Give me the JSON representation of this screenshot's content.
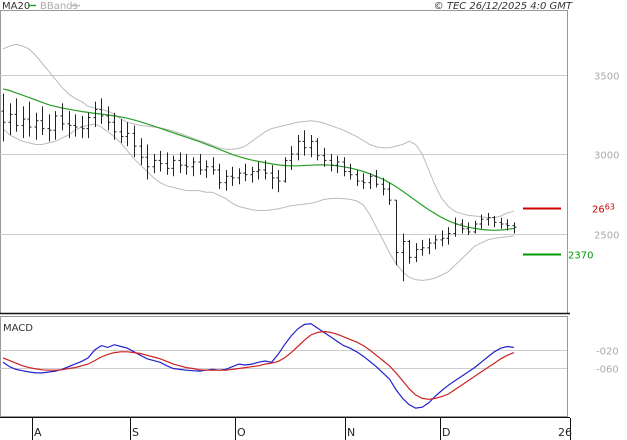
{
  "header": {
    "legend": [
      {
        "label": "MA20",
        "color": "#2aa02a"
      },
      {
        "label": "BBands",
        "color": "#bbbbbb"
      }
    ],
    "copyright": "© TEC 26/12/2025 4:0 GMT"
  },
  "colors": {
    "price": "#222222",
    "ma20": "#2aa02a",
    "bbands": "#bbbbbb",
    "grid": "#cccccc",
    "resistance": "#cc0000",
    "support": "#009900",
    "macd": "#2222cc",
    "signal": "#cc2222"
  },
  "chart_data": [
    {
      "type": "line",
      "name": "price-panel",
      "ylim": [
        2000,
        3900
      ],
      "yticks": [
        2500,
        3000,
        3500
      ],
      "ytick_labels": [
        "2500",
        "3000",
        "3500"
      ],
      "grid": true,
      "annotations": [
        {
          "label_main": "26",
          "label_sup": "63",
          "value": 2663,
          "color": "#cc0000"
        },
        {
          "label_main": "2370",
          "label_sup": "",
          "value": 2370,
          "color": "#009900"
        }
      ],
      "bars": [
        [
          3270,
          3380,
          3080,
          3200
        ],
        [
          3200,
          3320,
          3120,
          3250
        ],
        [
          3250,
          3350,
          3140,
          3180
        ],
        [
          3180,
          3300,
          3100,
          3220
        ],
        [
          3220,
          3330,
          3110,
          3170
        ],
        [
          3170,
          3260,
          3090,
          3210
        ],
        [
          3210,
          3300,
          3120,
          3160
        ],
        [
          3160,
          3250,
          3080,
          3150
        ],
        [
          3150,
          3270,
          3090,
          3240
        ],
        [
          3240,
          3320,
          3150,
          3190
        ],
        [
          3190,
          3270,
          3100,
          3180
        ],
        [
          3180,
          3250,
          3110,
          3170
        ],
        [
          3170,
          3240,
          3100,
          3160
        ],
        [
          3160,
          3260,
          3100,
          3230
        ],
        [
          3230,
          3330,
          3170,
          3280
        ],
        [
          3280,
          3350,
          3190,
          3240
        ],
        [
          3240,
          3300,
          3150,
          3200
        ],
        [
          3200,
          3260,
          3090,
          3140
        ],
        [
          3140,
          3220,
          3070,
          3110
        ],
        [
          3110,
          3200,
          3050,
          3130
        ],
        [
          3130,
          3180,
          2980,
          3050
        ],
        [
          3050,
          3100,
          2930,
          2980
        ],
        [
          2980,
          3060,
          2840,
          2920
        ],
        [
          2920,
          3000,
          2880,
          2960
        ],
        [
          2960,
          3020,
          2890,
          2940
        ],
        [
          2940,
          3010,
          2870,
          2910
        ],
        [
          2910,
          2990,
          2860,
          2960
        ],
        [
          2960,
          3010,
          2880,
          2930
        ],
        [
          2930,
          3000,
          2870,
          2920
        ],
        [
          2920,
          2980,
          2860,
          2950
        ],
        [
          2950,
          3000,
          2870,
          2900
        ],
        [
          2900,
          2960,
          2850,
          2920
        ],
        [
          2920,
          2980,
          2870,
          2900
        ],
        [
          2900,
          2940,
          2780,
          2820
        ],
        [
          2820,
          2900,
          2770,
          2860
        ],
        [
          2860,
          2920,
          2800,
          2850
        ],
        [
          2850,
          2910,
          2810,
          2880
        ],
        [
          2880,
          2940,
          2830,
          2870
        ],
        [
          2870,
          2920,
          2820,
          2890
        ],
        [
          2890,
          2950,
          2840,
          2900
        ],
        [
          2900,
          2960,
          2840,
          2880
        ],
        [
          2880,
          2930,
          2780,
          2850
        ],
        [
          2850,
          2900,
          2760,
          2830
        ],
        [
          2830,
          2980,
          2820,
          2960
        ],
        [
          2960,
          3050,
          2900,
          3000
        ],
        [
          3000,
          3120,
          2960,
          3080
        ],
        [
          3080,
          3150,
          2990,
          3040
        ],
        [
          3040,
          3120,
          2980,
          3080
        ],
        [
          3080,
          3100,
          2960,
          2990
        ],
        [
          2990,
          3040,
          2920,
          2960
        ],
        [
          2960,
          3000,
          2890,
          2930
        ],
        [
          2930,
          2990,
          2880,
          2950
        ],
        [
          2950,
          2980,
          2860,
          2890
        ],
        [
          2890,
          2940,
          2840,
          2870
        ],
        [
          2870,
          2900,
          2800,
          2830
        ],
        [
          2830,
          2880,
          2780,
          2820
        ],
        [
          2820,
          2880,
          2780,
          2860
        ],
        [
          2860,
          2900,
          2790,
          2810
        ],
        [
          2810,
          2850,
          2740,
          2780
        ],
        [
          2780,
          2820,
          2680,
          2710
        ],
        [
          2710,
          2550,
          2300,
          2380
        ],
        [
          2380,
          2500,
          2200,
          2450
        ],
        [
          2450,
          2460,
          2310,
          2350
        ],
        [
          2350,
          2440,
          2320,
          2400
        ],
        [
          2400,
          2460,
          2360,
          2410
        ],
        [
          2410,
          2470,
          2370,
          2440
        ],
        [
          2440,
          2490,
          2400,
          2460
        ],
        [
          2460,
          2520,
          2420,
          2470
        ],
        [
          2470,
          2540,
          2430,
          2500
        ],
        [
          2500,
          2600,
          2480,
          2560
        ],
        [
          2560,
          2590,
          2500,
          2530
        ],
        [
          2530,
          2570,
          2490,
          2510
        ],
        [
          2510,
          2580,
          2500,
          2560
        ],
        [
          2560,
          2620,
          2530,
          2590
        ],
        [
          2590,
          2630,
          2550,
          2600
        ],
        [
          2600,
          2610,
          2540,
          2570
        ],
        [
          2570,
          2600,
          2530,
          2560
        ],
        [
          2560,
          2590,
          2520,
          2550
        ],
        [
          2550,
          2570,
          2500,
          2540
        ]
      ],
      "ma20": [
        3410,
        3400,
        3385,
        3370,
        3355,
        3340,
        3325,
        3310,
        3300,
        3290,
        3282,
        3275,
        3268,
        3262,
        3256,
        3252,
        3246,
        3240,
        3233,
        3225,
        3215,
        3203,
        3190,
        3176,
        3162,
        3148,
        3134,
        3120,
        3106,
        3092,
        3078,
        3062,
        3046,
        3030,
        3014,
        2998,
        2984,
        2972,
        2962,
        2954,
        2946,
        2938,
        2932,
        2928,
        2926,
        2926,
        2928,
        2930,
        2932,
        2932,
        2930,
        2926,
        2920,
        2912,
        2902,
        2890,
        2876,
        2860,
        2842,
        2820,
        2795,
        2767,
        2738,
        2708,
        2678,
        2650,
        2624,
        2600,
        2580,
        2564,
        2550,
        2540,
        2532,
        2526,
        2522,
        2520,
        2522,
        2526,
        2532
      ],
      "bb_upper": [
        3660,
        3680,
        3690,
        3680,
        3660,
        3620,
        3570,
        3520,
        3470,
        3420,
        3380,
        3350,
        3330,
        3300,
        3290,
        3280,
        3270,
        3250,
        3220,
        3200,
        3190,
        3180,
        3175,
        3170,
        3165,
        3155,
        3145,
        3130,
        3115,
        3100,
        3085,
        3070,
        3055,
        3040,
        3030,
        3030,
        3035,
        3050,
        3080,
        3110,
        3140,
        3160,
        3170,
        3180,
        3190,
        3200,
        3205,
        3210,
        3205,
        3195,
        3180,
        3165,
        3150,
        3130,
        3110,
        3085,
        3060,
        3045,
        3040,
        3040,
        3050,
        3060,
        3080,
        3060,
        3000,
        2900,
        2800,
        2720,
        2670,
        2640,
        2625,
        2615,
        2610,
        2605,
        2600,
        2600,
        2610,
        2630,
        2640
      ],
      "bb_lower": [
        3160,
        3120,
        3100,
        3080,
        3070,
        3060,
        3060,
        3070,
        3080,
        3100,
        3120,
        3150,
        3170,
        3180,
        3190,
        3170,
        3140,
        3110,
        3070,
        3020,
        2970,
        2930,
        2890,
        2850,
        2820,
        2800,
        2790,
        2780,
        2770,
        2770,
        2770,
        2760,
        2760,
        2740,
        2720,
        2690,
        2670,
        2660,
        2650,
        2645,
        2645,
        2650,
        2655,
        2665,
        2675,
        2680,
        2685,
        2690,
        2700,
        2715,
        2720,
        2722,
        2720,
        2715,
        2705,
        2680,
        2620,
        2540,
        2460,
        2380,
        2310,
        2260,
        2225,
        2210,
        2205,
        2210,
        2220,
        2240,
        2260,
        2300,
        2340,
        2380,
        2420,
        2440,
        2460,
        2470,
        2475,
        2480,
        2485
      ]
    },
    {
      "type": "line",
      "name": "macd-panel",
      "title": "MACD",
      "ylim": [
        -170,
        55
      ],
      "yticks": [
        -20,
        -60
      ],
      "ytick_labels": [
        "-020",
        "-060"
      ],
      "grid": true,
      "series": [
        {
          "values": [
            -48,
            -58,
            -64,
            -67,
            -70,
            -72,
            -72,
            -70,
            -68,
            -64,
            -58,
            -52,
            -46,
            -38,
            -20,
            -10,
            -14,
            -8,
            -12,
            -16,
            -24,
            -32,
            -40,
            -44,
            -48,
            -56,
            -62,
            -64,
            -66,
            -67,
            -68,
            -66,
            -64,
            -66,
            -64,
            -58,
            -52,
            -54,
            -52,
            -48,
            -45,
            -48,
            -30,
            -8,
            12,
            28,
            38,
            40,
            30,
            20,
            10,
            0,
            -10,
            -16,
            -24,
            -34,
            -46,
            -58,
            -72,
            -86,
            -110,
            -130,
            -144,
            -152,
            -150,
            -140,
            -125,
            -112,
            -100,
            -90,
            -80,
            -70,
            -60,
            -48,
            -36,
            -24,
            -16,
            -12,
            -14
          ]
        },
        {
          "values": [
            -38,
            -44,
            -50,
            -56,
            -60,
            -63,
            -65,
            -66,
            -66,
            -65,
            -62,
            -60,
            -56,
            -52,
            -44,
            -36,
            -30,
            -26,
            -24,
            -24,
            -26,
            -28,
            -32,
            -36,
            -40,
            -46,
            -52,
            -56,
            -60,
            -62,
            -65,
            -66,
            -66,
            -66,
            -66,
            -64,
            -62,
            -60,
            -58,
            -56,
            -52,
            -50,
            -46,
            -38,
            -26,
            -12,
            2,
            14,
            20,
            22,
            20,
            16,
            10,
            4,
            -2,
            -10,
            -20,
            -32,
            -44,
            -56,
            -72,
            -90,
            -108,
            -122,
            -130,
            -132,
            -130,
            -126,
            -120,
            -110,
            -100,
            -90,
            -80,
            -70,
            -60,
            -50,
            -40,
            -32,
            -26
          ]
        }
      ]
    }
  ],
  "x_axis": {
    "labels": [
      "A",
      "S",
      "O",
      "N",
      "D",
      "26"
    ]
  }
}
